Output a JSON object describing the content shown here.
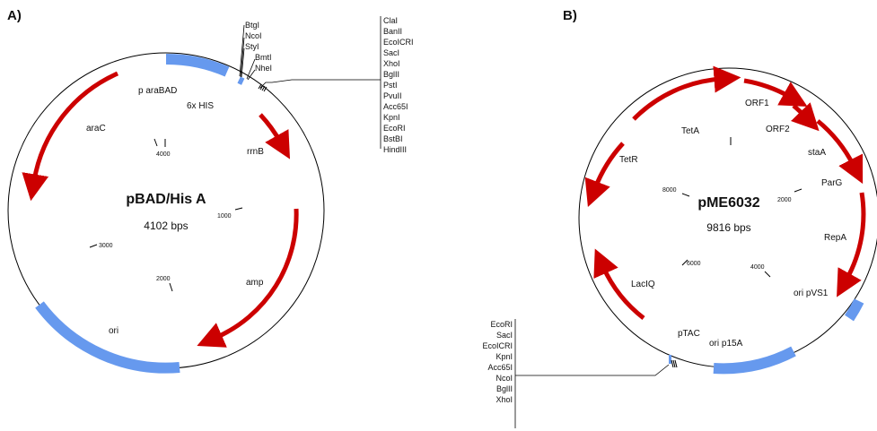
{
  "panels": {
    "a": {
      "label": "A)",
      "name": "pBAD/His A",
      "size": "4102 bps",
      "features": [
        "p araBAD",
        "6x HIS",
        "araC",
        "rrnB",
        "amp",
        "ori"
      ],
      "ticks": [
        "4000",
        "1000",
        "3000",
        "2000"
      ],
      "sites_left": [
        "BtgI",
        "NcoI",
        "StyI"
      ],
      "sites_right": [
        "BmtI",
        "NheI"
      ],
      "mcs": [
        "ClaI",
        "BanII",
        "EcoICRI",
        "SacI",
        "XhoI",
        "BglII",
        "PstI",
        "PvuII",
        "Acc65I",
        "KpnI",
        "EcoRI",
        "BstBI",
        "HindIII"
      ]
    },
    "b": {
      "label": "B)",
      "name": "pME6032",
      "size": "9816 bps",
      "features": [
        "TetA",
        "ORF1",
        "ORF2",
        "staA",
        "TetR",
        "ParG",
        "RepA",
        "ori pVS1",
        "LacIQ",
        "pTAC",
        "ori p15A"
      ],
      "ticks": [
        "8000",
        "2000",
        "6000",
        "4000"
      ],
      "mcs": [
        "EcoRI",
        "SacI",
        "EcoICRI",
        "KpnI",
        "Acc65I",
        "NcoI",
        "BglII",
        "XhoI"
      ]
    }
  },
  "colors": {
    "arrow": "#cc0000",
    "block": "#6699ee",
    "line": "#000000"
  }
}
